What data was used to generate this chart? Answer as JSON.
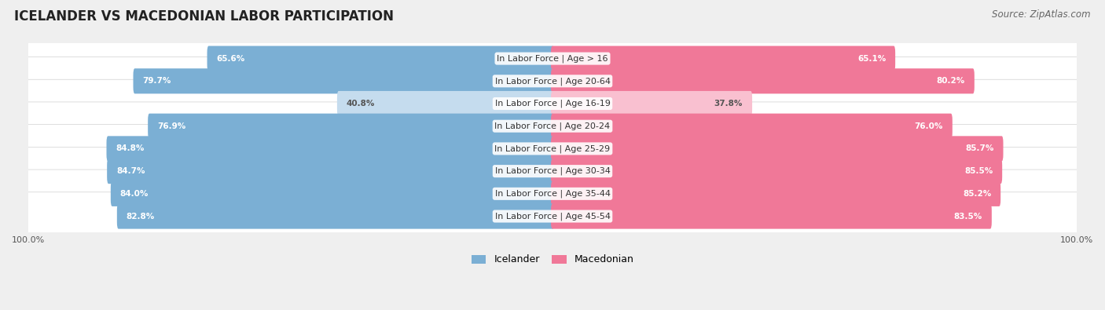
{
  "title": "Icelander vs Macedonian Labor Participation",
  "source": "Source: ZipAtlas.com",
  "categories": [
    "In Labor Force | Age > 16",
    "In Labor Force | Age 20-64",
    "In Labor Force | Age 16-19",
    "In Labor Force | Age 20-24",
    "In Labor Force | Age 25-29",
    "In Labor Force | Age 30-34",
    "In Labor Force | Age 35-44",
    "In Labor Force | Age 45-54"
  ],
  "icelander_values": [
    65.6,
    79.7,
    40.8,
    76.9,
    84.8,
    84.7,
    84.0,
    82.8
  ],
  "macedonian_values": [
    65.1,
    80.2,
    37.8,
    76.0,
    85.7,
    85.5,
    85.2,
    83.5
  ],
  "icelander_color": "#7bafd4",
  "macedonian_color": "#f07898",
  "icelander_color_light": "#c5dcee",
  "macedonian_color_light": "#f9c0d0",
  "bg_color": "#efefef",
  "max_value": 100.0,
  "legend_icelander": "Icelander",
  "legend_macedonian": "Macedonian",
  "title_fontsize": 12,
  "source_fontsize": 8.5,
  "label_fontsize": 8,
  "value_fontsize": 7.5,
  "bar_height": 0.52
}
